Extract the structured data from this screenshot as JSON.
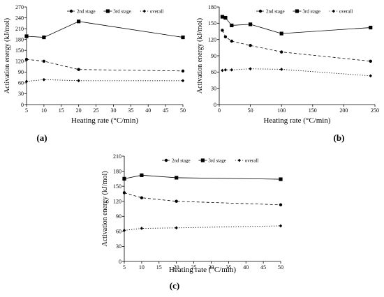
{
  "chart_data": [
    {
      "type": "line",
      "panel_label": "(a)",
      "xlabel": "Heating rate (°C/min)",
      "ylabel": "Activation energy (kJ/mol)",
      "x": [
        5,
        10,
        20,
        50
      ],
      "xlim": [
        5,
        50
      ],
      "ylim": [
        0,
        270
      ],
      "xticks": [
        5,
        10,
        15,
        20,
        25,
        30,
        35,
        40,
        45,
        50
      ],
      "yticks": [
        0,
        30,
        60,
        90,
        120,
        150,
        180,
        210,
        240,
        270
      ],
      "legend_position": "top-center",
      "grid": false,
      "series": [
        {
          "name": "2nd stage",
          "values": [
            125,
            120,
            97,
            93
          ],
          "line": "dashed",
          "marker": "circle"
        },
        {
          "name": "3rd stage",
          "values": [
            189,
            186,
            230,
            186
          ],
          "line": "solid",
          "marker": "square"
        },
        {
          "name": "overall",
          "values": [
            64,
            69,
            66,
            66
          ],
          "line": "dotted",
          "marker": "diamond"
        }
      ]
    },
    {
      "type": "line",
      "panel_label": "(b)",
      "xlabel": "Heating rate (°C/min)",
      "ylabel": "Activation energy (kJ/mol)",
      "x": [
        5,
        10,
        20,
        50,
        100,
        243
      ],
      "xlim": [
        0,
        250
      ],
      "ylim": [
        0,
        180
      ],
      "xticks": [
        0,
        50,
        100,
        150,
        200,
        250
      ],
      "yticks": [
        0,
        30,
        60,
        90,
        120,
        150,
        180
      ],
      "legend_position": "top-center",
      "grid": false,
      "series": [
        {
          "name": "2nd stage",
          "values": [
            137,
            125,
            117,
            109,
            97,
            80
          ],
          "line": "dashed",
          "marker": "circle"
        },
        {
          "name": "3rd stage",
          "values": [
            162,
            160,
            146,
            148,
            131,
            142
          ],
          "line": "solid",
          "marker": "square"
        },
        {
          "name": "overall",
          "values": [
            63,
            64,
            64,
            66,
            65,
            53
          ],
          "line": "dotted",
          "marker": "diamond"
        }
      ]
    },
    {
      "type": "line",
      "panel_label": "(c)",
      "xlabel": "Heating rate (°C/min)",
      "ylabel": "Activation energy (kJ/mol)",
      "x": [
        5,
        10,
        20,
        50
      ],
      "xlim": [
        5,
        50
      ],
      "ylim": [
        0,
        210
      ],
      "xticks": [
        5,
        10,
        15,
        20,
        25,
        30,
        35,
        40,
        45,
        50
      ],
      "yticks": [
        0,
        30,
        60,
        90,
        120,
        150,
        180,
        210
      ],
      "legend_position": "top-center",
      "grid": false,
      "series": [
        {
          "name": "2nd stage",
          "values": [
            137,
            127,
            120,
            113
          ],
          "line": "dashed",
          "marker": "circle"
        },
        {
          "name": "3rd stage",
          "values": [
            165,
            172,
            167,
            164
          ],
          "line": "solid",
          "marker": "square"
        },
        {
          "name": "overall",
          "values": [
            62,
            66,
            67,
            71
          ],
          "line": "dotted",
          "marker": "diamond"
        }
      ]
    }
  ]
}
